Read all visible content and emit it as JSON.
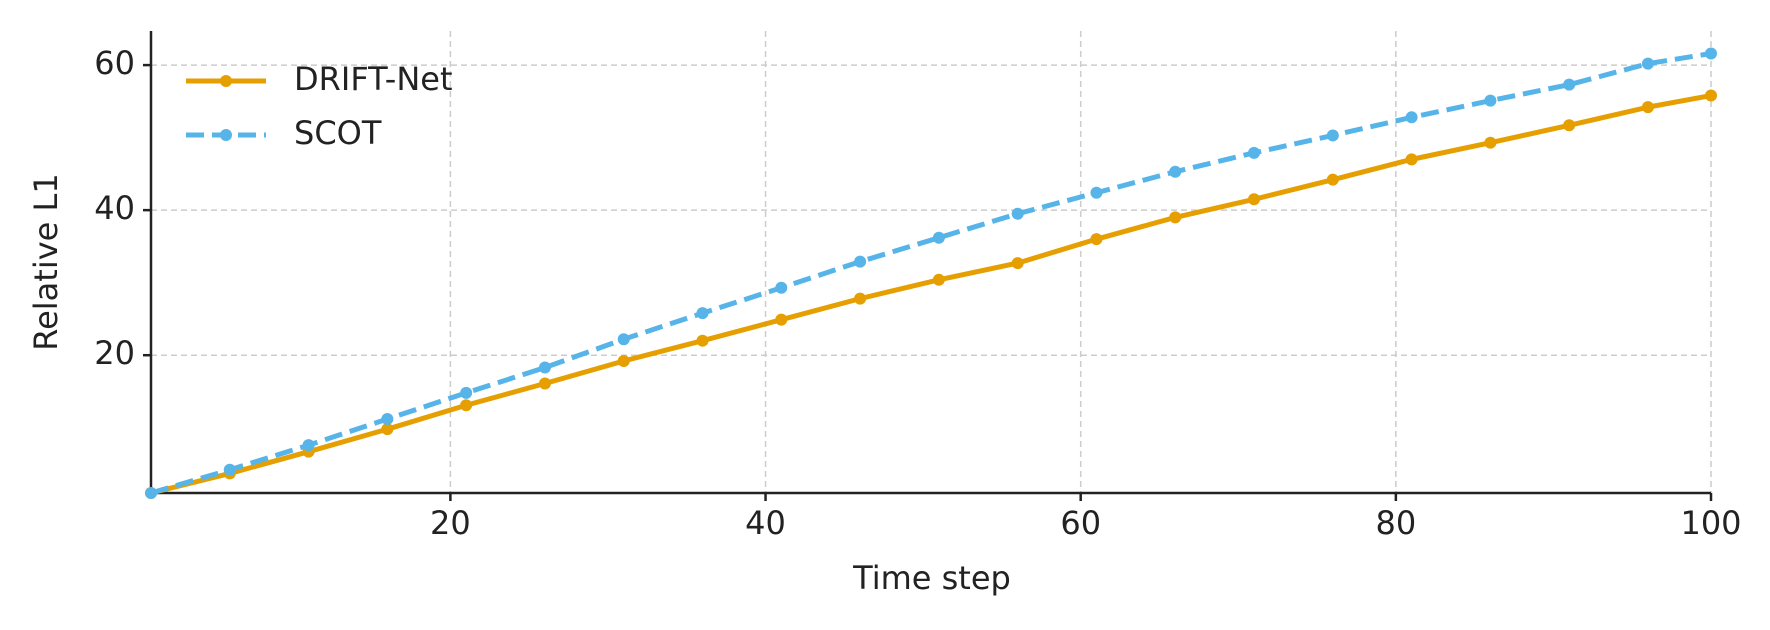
{
  "chart_data": {
    "type": "line",
    "x_label": "Time step",
    "y_label": "Relative L1",
    "x": [
      1,
      6,
      11,
      16,
      21,
      26,
      31,
      36,
      41,
      46,
      51,
      56,
      61,
      66,
      71,
      76,
      81,
      86,
      91,
      96,
      100
    ],
    "series": [
      {
        "name": "DRIFT-Net",
        "color": "#e69f00",
        "linestyle": "solid",
        "values": [
          1,
          3.7,
          6.7,
          9.8,
          13.1,
          16.1,
          19.2,
          22.0,
          24.9,
          27.8,
          30.4,
          32.7,
          36.0,
          39.0,
          41.5,
          44.2,
          47.0,
          49.3,
          51.7,
          54.2,
          55.8
        ]
      },
      {
        "name": "SCOT",
        "color": "#56b4e9",
        "linestyle": "dashed",
        "values": [
          1,
          4.2,
          7.6,
          11.2,
          14.8,
          18.3,
          22.2,
          25.8,
          29.3,
          32.9,
          36.2,
          39.5,
          42.4,
          45.3,
          47.9,
          50.3,
          52.8,
          55.1,
          57.3,
          60.2,
          61.6
        ]
      }
    ],
    "xlim": [
      1,
      100
    ],
    "xticks": [
      20,
      40,
      60,
      80,
      100
    ],
    "ylim": [
      1,
      64.7
    ],
    "yticks": [
      20,
      40,
      60
    ],
    "grid": true,
    "legend": "upper-left"
  }
}
